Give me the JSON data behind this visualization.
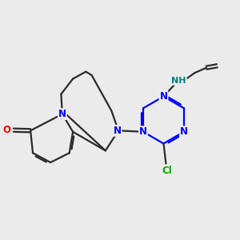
{
  "bg_color": "#ebebeb",
  "bond_color": "#2a2a2a",
  "N_color": "#0000ff",
  "O_color": "#ff0000",
  "Cl_color": "#00aa00",
  "NH_color": "#008080",
  "line_width": 1.6,
  "figsize": [
    3.0,
    3.0
  ],
  "dpi": 100,
  "xlim": [
    0,
    10
  ],
  "ylim": [
    0,
    10
  ]
}
